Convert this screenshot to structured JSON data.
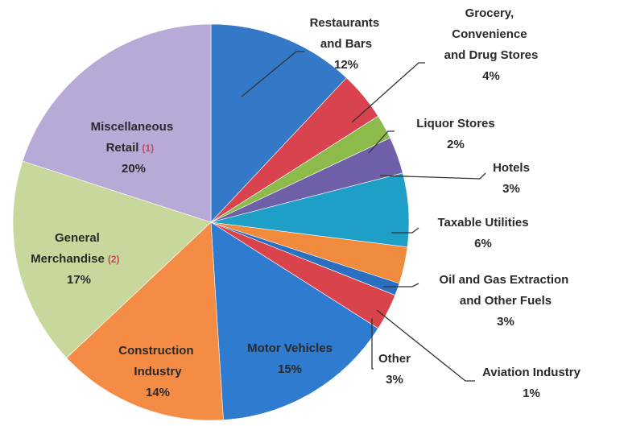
{
  "chart_data": {
    "type": "pie",
    "categories": [
      "Restaurants and Bars",
      "Grocery, Convenience and Drug Stores",
      "Liquor Stores",
      "Hotels",
      "Taxable Utilities",
      "Oil and Gas Extraction and Other Fuels",
      "Aviation Industry",
      "Other",
      "Motor Vehicles",
      "Construction Industry",
      "General Merchandise",
      "Miscellaneous Retail"
    ],
    "values": [
      12,
      4,
      2,
      3,
      6,
      3,
      1,
      3,
      15,
      14,
      17,
      20
    ],
    "value_labels": [
      "12%",
      "4%",
      "2%",
      "3%",
      "6%",
      "3%",
      "1%",
      "3%",
      "15%",
      "14%",
      "17%",
      "20%"
    ],
    "footnotes": [
      null,
      null,
      null,
      null,
      null,
      null,
      null,
      null,
      null,
      null,
      "(2)",
      "(1)"
    ],
    "colors": [
      "#3478c8",
      "#d8434f",
      "#8cbb4c",
      "#6f5fa8",
      "#1e9fc8",
      "#f08a3c",
      "#2a6fc0",
      "#d9434c",
      "#2f7bd0",
      "#f58c45",
      "#c8d89c",
      "#b8aad7"
    ]
  }
}
